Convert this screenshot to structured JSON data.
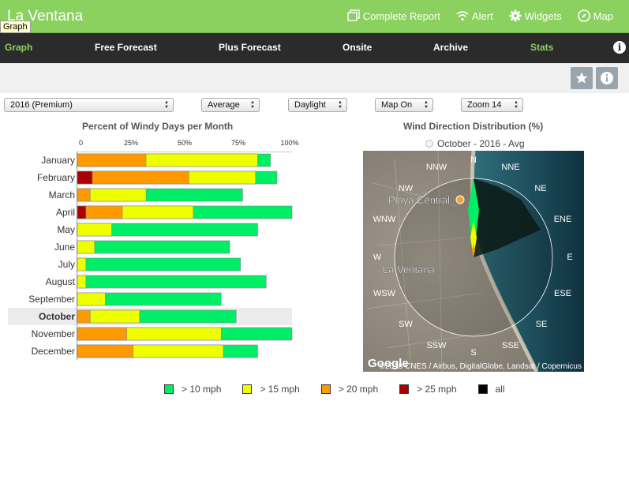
{
  "app": {
    "title": "La Ventana",
    "tooltip": "Graph"
  },
  "top_links": [
    {
      "label": "Complete Report",
      "icon": "report-icon"
    },
    {
      "label": "Alert",
      "icon": "wifi-icon"
    },
    {
      "label": "Widgets",
      "icon": "gear-icon"
    },
    {
      "label": "Map",
      "icon": "compass-icon"
    }
  ],
  "nav": {
    "graph": "Graph",
    "free": "Free Forecast",
    "plus": "Plus Forecast",
    "onsite": "Onsite",
    "archive": "Archive",
    "stats": "Stats",
    "info": "i"
  },
  "toolbar": {
    "star_icon": "star-icon",
    "info_icon": "info-icon"
  },
  "selects": {
    "year": "2016 (Premium)",
    "mode": "Average",
    "time": "Daylight",
    "map": "Map On",
    "zoom": "Zoom 14"
  },
  "bar_panel": {
    "title": "Percent of Windy Days per Month"
  },
  "direction_panel": {
    "title": "Wind Direction Distribution (%)",
    "subtitle": "October - 2016 - Avg",
    "place_labels": [
      "Playa Central",
      "La Ventana"
    ],
    "attribution": "©2018 CNES / Airbus, DigitalGlobe, Landsat / Copernicus",
    "google": "Google",
    "compass": [
      "N",
      "NNE",
      "NE",
      "ENE",
      "E",
      "ESE",
      "SE",
      "SSE",
      "S",
      "SSW",
      "SW",
      "WSW",
      "W",
      "WNW",
      "NW",
      "NNW"
    ]
  },
  "colors": {
    "gt10": "#00ee66",
    "gt15": "#eeff00",
    "gt20": "#ff9900",
    "gt25": "#aa0000",
    "all": "#000000"
  },
  "legend": [
    {
      "label": "> 10 mph",
      "key": "gt10"
    },
    {
      "label": "> 15 mph",
      "key": "gt15"
    },
    {
      "label": "> 20 mph",
      "key": "gt20"
    },
    {
      "label": "> 25 mph",
      "key": "gt25"
    },
    {
      "label": "all",
      "key": "all"
    }
  ],
  "chart_data": {
    "type": "bar",
    "orientation": "horizontal",
    "title": "Percent of Windy Days per Month",
    "xlim": [
      0,
      100
    ],
    "xticks": [
      "0",
      "25%",
      "50%",
      "75%",
      "100%"
    ],
    "highlighted_category": "October",
    "categories": [
      "January",
      "February",
      "March",
      "April",
      "May",
      "June",
      "July",
      "August",
      "September",
      "October",
      "November",
      "December"
    ],
    "series": [
      {
        "name": "> 10 mph",
        "key": "gt10",
        "values": [
          90,
          93,
          77,
          100,
          84,
          71,
          76,
          88,
          67,
          74,
          100,
          84
        ]
      },
      {
        "name": "> 15 mph",
        "key": "gt15",
        "values": [
          84,
          83,
          32,
          54,
          16,
          8,
          4,
          4,
          13,
          29,
          67,
          68
        ]
      },
      {
        "name": "> 20 mph",
        "key": "gt20",
        "values": [
          32,
          52,
          6,
          21,
          0,
          0,
          0,
          0,
          0,
          6,
          23,
          26
        ]
      },
      {
        "name": "> 25 mph",
        "key": "gt25",
        "values": [
          0,
          7,
          0,
          4,
          0,
          0,
          0,
          0,
          0,
          0,
          0,
          0
        ]
      }
    ]
  }
}
